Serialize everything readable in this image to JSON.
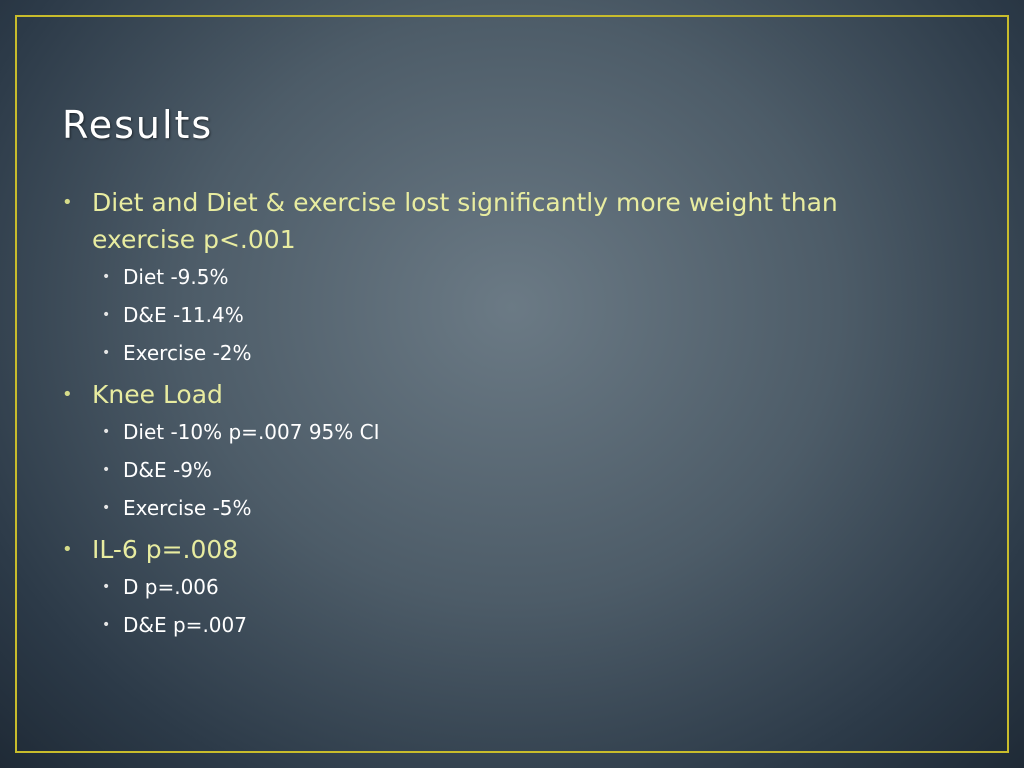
{
  "slide": {
    "title": "Results",
    "bullet_glyph": "•",
    "items": [
      {
        "level": 1,
        "text": "Diet and Diet & exercise lost significantly more weight than exercise p<.001"
      },
      {
        "level": 2,
        "text": "Diet -9.5%"
      },
      {
        "level": 2,
        "text": "D&E -11.4%"
      },
      {
        "level": 2,
        "text": "Exercise -2%"
      },
      {
        "level": 1,
        "text": "Knee Load"
      },
      {
        "level": 2,
        "text": "Diet -10% p=.007 95% CI"
      },
      {
        "level": 2,
        "text": "D&E -9%"
      },
      {
        "level": 2,
        "text": "Exercise -5%"
      },
      {
        "level": 1,
        "text": "IL-6 p=.008"
      },
      {
        "level": 2,
        "text": "D p=.006"
      },
      {
        "level": 2,
        "text": "D&E p=.007"
      }
    ]
  },
  "colors": {
    "frame_border": "#c8bc2c",
    "level1_text": "#e8eca0",
    "level2_text": "#ffffff",
    "title_text": "#ffffff"
  }
}
